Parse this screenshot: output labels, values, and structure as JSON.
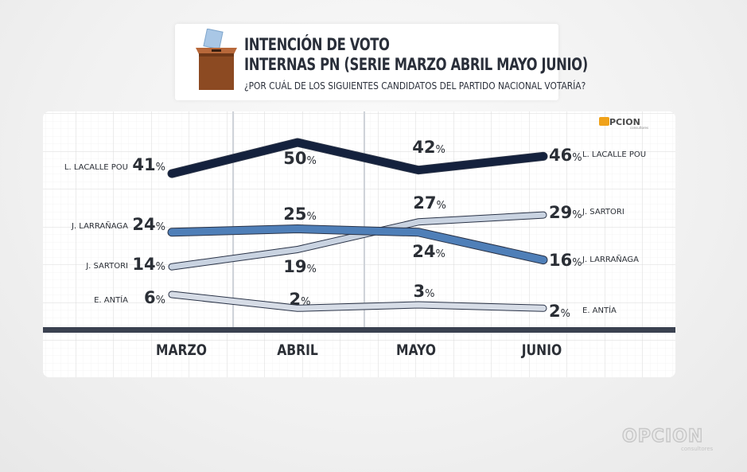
{
  "title_card": {
    "line1": "INTENCIÓN DE VOTO",
    "line2": "INTERNAS PN (SERIE MARZO ABRIL MAYO JUNIO)",
    "question": "¿POR CUÁL DE LOS SIGUIENTES CANDIDATOS DEL PARTIDO NACIONAL VOTARÍA?"
  },
  "brand": {
    "logo_text": "OPCION",
    "logo_sub": "consultores"
  },
  "colors": {
    "lacalle": "#14213d",
    "larranaga": "#4f7fb8",
    "sartori": "#c9d3e1",
    "antia": "#d6dce6",
    "outline": "#2a3347",
    "label_text": "#2b2f36",
    "baseline": "#3a4150"
  },
  "chart_data": {
    "type": "line",
    "title": "INTENCIÓN DE VOTO",
    "categories": [
      "MARZO",
      "ABRIL",
      "MAYO",
      "JUNIO"
    ],
    "ylim": [
      0,
      55
    ],
    "grid": true,
    "series": [
      {
        "key": "lacalle",
        "name": "L. LACALLE POU",
        "values": [
          41,
          50,
          42,
          46
        ],
        "value_labels": [
          "41",
          "50",
          "42",
          "46"
        ]
      },
      {
        "key": "larranaga",
        "name": "J. LARRAÑAGA",
        "values": [
          24,
          25,
          24,
          16
        ],
        "value_labels": [
          "24",
          "25",
          "24",
          "16"
        ]
      },
      {
        "key": "sartori",
        "name": "J. SARTORI",
        "values": [
          14,
          19,
          27,
          29
        ],
        "value_labels": [
          "14",
          "19",
          "27",
          "29"
        ]
      },
      {
        "key": "antia",
        "name": "E. ANTÍA",
        "values": [
          6,
          2,
          3,
          2
        ],
        "value_labels": [
          "6",
          "2",
          "3",
          "2"
        ]
      }
    ],
    "left_labels": [
      "L. LACALLE POU",
      "J. LARRAÑAGA",
      "J. SARTORI",
      "E. ANTÍA"
    ],
    "right_labels": [
      "L. LACALLE POU",
      "J. SARTORI",
      "J. LARRAÑAGA",
      "E. ANTÍA"
    ],
    "unit": "%"
  }
}
